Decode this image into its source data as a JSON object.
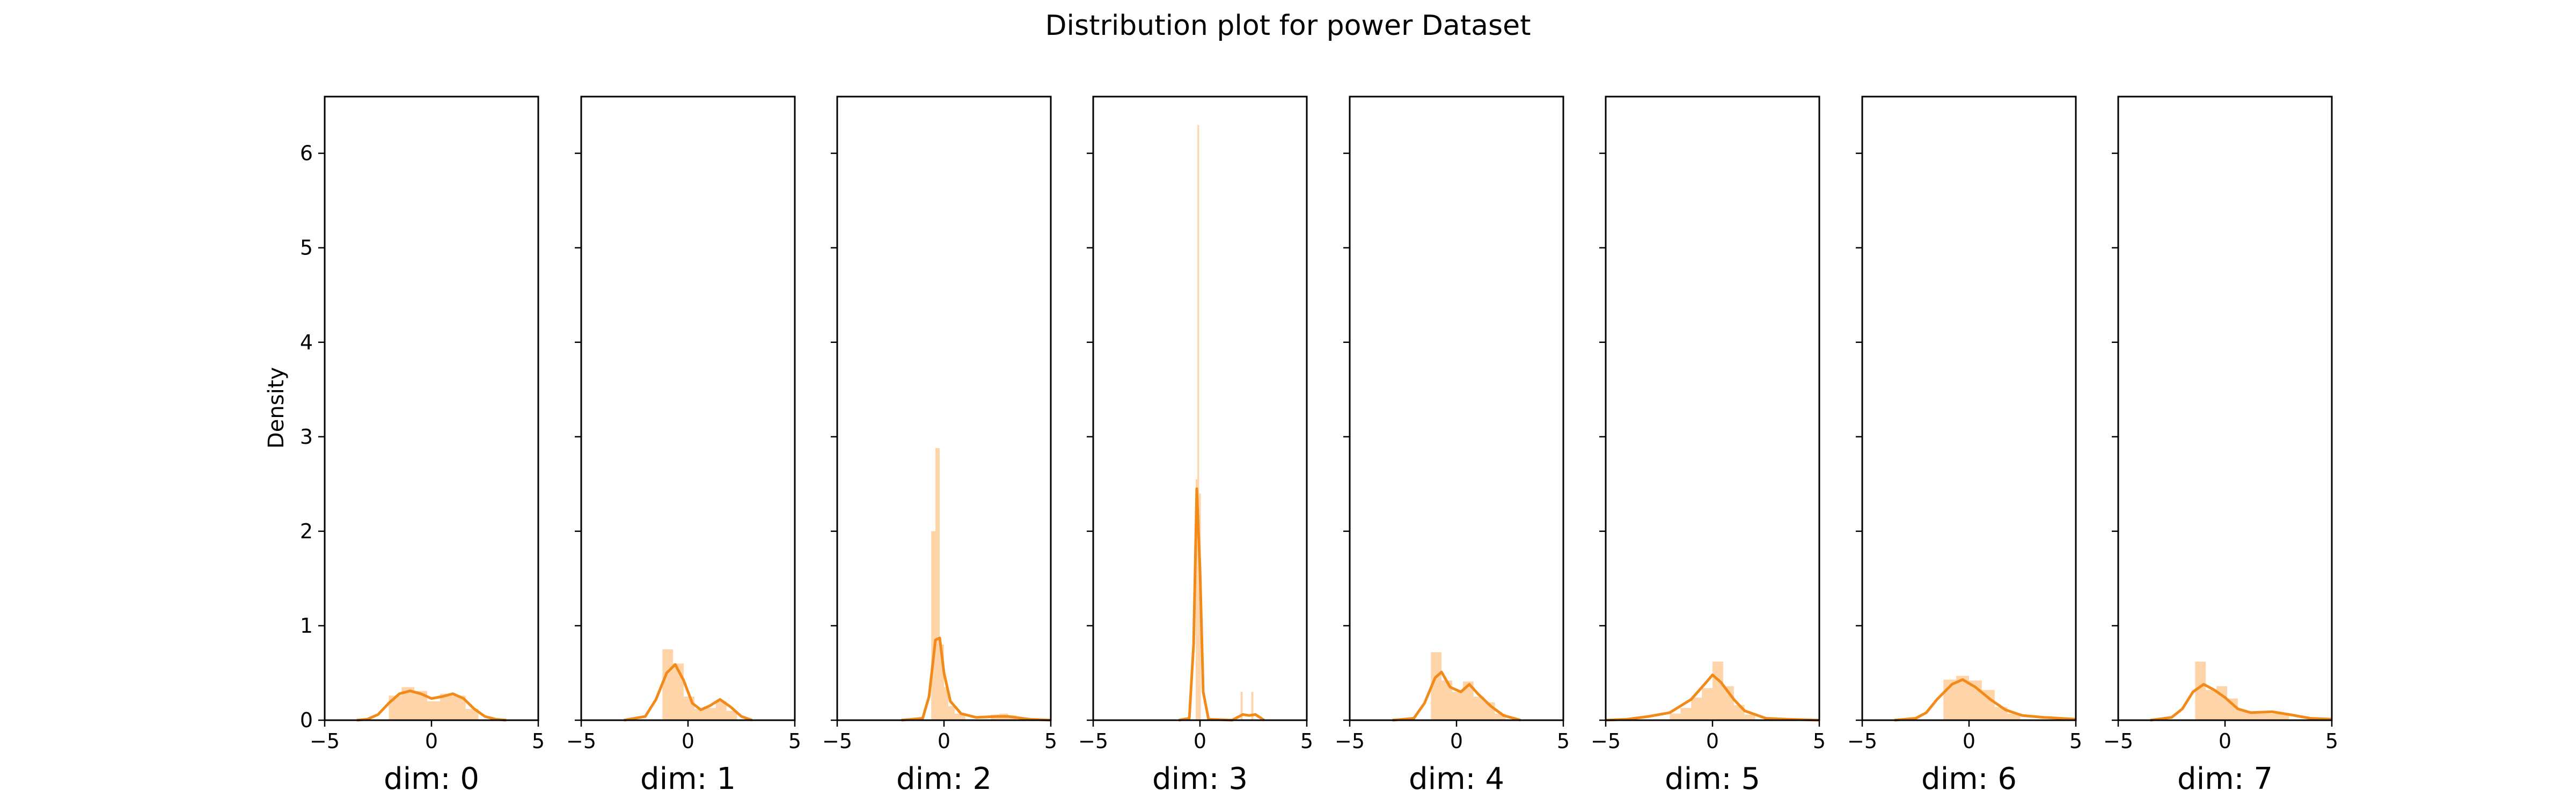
{
  "chart_data": {
    "type": "histogram-kde",
    "title": "Distribution plot for power Dataset",
    "ylabel": "Density",
    "xlim": [
      -5,
      5
    ],
    "ylim": [
      0,
      6.6
    ],
    "x_ticks": [
      -5,
      0,
      5
    ],
    "y_ticks": [
      0,
      1,
      2,
      3,
      4,
      5,
      6
    ],
    "bar_color": "#ffcc99",
    "line_color": "#f28a1a",
    "grid": false,
    "panels": [
      {
        "xlabel": "dim: 0",
        "histogram": [
          {
            "x0": -2.0,
            "x1": -1.4,
            "density": 0.26
          },
          {
            "x0": -1.4,
            "x1": -0.8,
            "density": 0.35
          },
          {
            "x0": -0.8,
            "x1": -0.2,
            "density": 0.31
          },
          {
            "x0": -0.2,
            "x1": 0.4,
            "density": 0.2
          },
          {
            "x0": 0.4,
            "x1": 1.0,
            "density": 0.28
          },
          {
            "x0": 1.0,
            "x1": 1.6,
            "density": 0.26
          },
          {
            "x0": 1.6,
            "x1": 2.2,
            "density": 0.12
          }
        ],
        "kde": [
          [
            -3.5,
            0.0
          ],
          [
            -3.0,
            0.01
          ],
          [
            -2.5,
            0.06
          ],
          [
            -2.0,
            0.18
          ],
          [
            -1.5,
            0.28
          ],
          [
            -1.0,
            0.31
          ],
          [
            -0.5,
            0.28
          ],
          [
            0.0,
            0.23
          ],
          [
            0.5,
            0.25
          ],
          [
            1.0,
            0.28
          ],
          [
            1.5,
            0.23
          ],
          [
            2.0,
            0.12
          ],
          [
            2.5,
            0.04
          ],
          [
            3.0,
            0.01
          ],
          [
            3.5,
            0.0
          ]
        ]
      },
      {
        "xlabel": "dim: 1",
        "histogram": [
          {
            "x0": -1.2,
            "x1": -0.7,
            "density": 0.75
          },
          {
            "x0": -0.7,
            "x1": -0.2,
            "density": 0.6
          },
          {
            "x0": -0.2,
            "x1": 0.3,
            "density": 0.25
          },
          {
            "x0": 0.3,
            "x1": 0.8,
            "density": 0.12
          },
          {
            "x0": 0.8,
            "x1": 1.3,
            "density": 0.13
          },
          {
            "x0": 1.3,
            "x1": 1.8,
            "density": 0.2
          },
          {
            "x0": 1.8,
            "x1": 2.3,
            "density": 0.1
          }
        ],
        "kde": [
          [
            -3.0,
            0.0
          ],
          [
            -2.0,
            0.04
          ],
          [
            -1.5,
            0.22
          ],
          [
            -1.0,
            0.5
          ],
          [
            -0.6,
            0.59
          ],
          [
            -0.2,
            0.42
          ],
          [
            0.2,
            0.18
          ],
          [
            0.6,
            0.11
          ],
          [
            1.0,
            0.15
          ],
          [
            1.5,
            0.22
          ],
          [
            2.0,
            0.14
          ],
          [
            2.5,
            0.04
          ],
          [
            3.0,
            0.0
          ]
        ]
      },
      {
        "xlabel": "dim: 2",
        "histogram": [
          {
            "x0": -0.6,
            "x1": -0.4,
            "density": 2.0
          },
          {
            "x0": -0.4,
            "x1": -0.2,
            "density": 2.88
          },
          {
            "x0": -0.2,
            "x1": 0.0,
            "density": 0.8
          },
          {
            "x0": 0.0,
            "x1": 0.2,
            "density": 0.35
          },
          {
            "x0": 0.2,
            "x1": 0.5,
            "density": 0.15
          },
          {
            "x0": 0.5,
            "x1": 1.0,
            "density": 0.07
          },
          {
            "x0": 2.2,
            "x1": 2.6,
            "density": 0.06
          },
          {
            "x0": 2.6,
            "x1": 3.0,
            "density": 0.07
          },
          {
            "x0": 3.0,
            "x1": 3.4,
            "density": 0.05
          }
        ],
        "kde": [
          [
            -2.0,
            0.0
          ],
          [
            -1.0,
            0.02
          ],
          [
            -0.7,
            0.25
          ],
          [
            -0.4,
            0.85
          ],
          [
            -0.2,
            0.87
          ],
          [
            0.0,
            0.5
          ],
          [
            0.3,
            0.2
          ],
          [
            0.8,
            0.07
          ],
          [
            1.5,
            0.03
          ],
          [
            2.5,
            0.04
          ],
          [
            3.0,
            0.04
          ],
          [
            4.0,
            0.01
          ],
          [
            5.0,
            0.0
          ]
        ]
      },
      {
        "xlabel": "dim: 3",
        "histogram": [
          {
            "x0": -0.12,
            "x1": -0.04,
            "density": 6.3
          },
          {
            "x0": -0.2,
            "x1": -0.12,
            "density": 2.55
          },
          {
            "x0": -0.04,
            "x1": 0.04,
            "density": 2.4
          },
          {
            "x0": 1.9,
            "x1": 2.0,
            "density": 0.3
          },
          {
            "x0": 2.4,
            "x1": 2.5,
            "density": 0.3
          }
        ],
        "kde": [
          [
            -1.0,
            0.0
          ],
          [
            -0.5,
            0.02
          ],
          [
            -0.3,
            0.8
          ],
          [
            -0.15,
            2.45
          ],
          [
            0.0,
            1.6
          ],
          [
            0.15,
            0.3
          ],
          [
            0.4,
            0.01
          ],
          [
            1.5,
            0.0
          ],
          [
            2.0,
            0.06
          ],
          [
            2.3,
            0.05
          ],
          [
            2.6,
            0.06
          ],
          [
            3.0,
            0.0
          ]
        ]
      },
      {
        "xlabel": "dim: 4",
        "histogram": [
          {
            "x0": -1.2,
            "x1": -0.7,
            "density": 0.72
          },
          {
            "x0": -0.7,
            "x1": -0.2,
            "density": 0.42
          },
          {
            "x0": -0.2,
            "x1": 0.3,
            "density": 0.3
          },
          {
            "x0": 0.3,
            "x1": 0.8,
            "density": 0.41
          },
          {
            "x0": 0.8,
            "x1": 1.3,
            "density": 0.25
          },
          {
            "x0": 1.3,
            "x1": 1.8,
            "density": 0.19
          },
          {
            "x0": 1.8,
            "x1": 2.3,
            "density": 0.07
          }
        ],
        "kde": [
          [
            -3.0,
            0.0
          ],
          [
            -2.0,
            0.02
          ],
          [
            -1.5,
            0.18
          ],
          [
            -1.0,
            0.45
          ],
          [
            -0.7,
            0.51
          ],
          [
            -0.3,
            0.35
          ],
          [
            0.2,
            0.3
          ],
          [
            0.6,
            0.38
          ],
          [
            1.0,
            0.28
          ],
          [
            1.6,
            0.15
          ],
          [
            2.2,
            0.05
          ],
          [
            3.0,
            0.0
          ]
        ]
      },
      {
        "xlabel": "dim: 5",
        "histogram": [
          {
            "x0": -2.0,
            "x1": -1.5,
            "density": 0.07
          },
          {
            "x0": -1.5,
            "x1": -1.0,
            "density": 0.13
          },
          {
            "x0": -1.0,
            "x1": -0.5,
            "density": 0.24
          },
          {
            "x0": -0.5,
            "x1": 0.0,
            "density": 0.34
          },
          {
            "x0": 0.0,
            "x1": 0.5,
            "density": 0.62
          },
          {
            "x0": 0.5,
            "x1": 1.0,
            "density": 0.36
          },
          {
            "x0": 1.0,
            "x1": 1.5,
            "density": 0.16
          },
          {
            "x0": 1.5,
            "x1": 2.0,
            "density": 0.06
          }
        ],
        "kde": [
          [
            -5.0,
            0.0
          ],
          [
            -4.0,
            0.01
          ],
          [
            -3.0,
            0.04
          ],
          [
            -2.0,
            0.08
          ],
          [
            -1.0,
            0.22
          ],
          [
            -0.3,
            0.4
          ],
          [
            0.0,
            0.48
          ],
          [
            0.4,
            0.4
          ],
          [
            1.0,
            0.22
          ],
          [
            1.5,
            0.1
          ],
          [
            2.5,
            0.02
          ],
          [
            3.5,
            0.01
          ],
          [
            5.0,
            0.0
          ]
        ]
      },
      {
        "xlabel": "dim: 6",
        "histogram": [
          {
            "x0": -1.2,
            "x1": -0.6,
            "density": 0.43
          },
          {
            "x0": -0.6,
            "x1": 0.0,
            "density": 0.47
          },
          {
            "x0": 0.0,
            "x1": 0.6,
            "density": 0.42
          },
          {
            "x0": 0.6,
            "x1": 1.2,
            "density": 0.32
          },
          {
            "x0": 1.2,
            "x1": 1.8,
            "density": 0.14
          },
          {
            "x0": 1.8,
            "x1": 2.4,
            "density": 0.07
          }
        ],
        "kde": [
          [
            -3.5,
            0.0
          ],
          [
            -2.5,
            0.02
          ],
          [
            -2.0,
            0.08
          ],
          [
            -1.5,
            0.22
          ],
          [
            -0.8,
            0.38
          ],
          [
            -0.3,
            0.43
          ],
          [
            0.3,
            0.35
          ],
          [
            1.0,
            0.22
          ],
          [
            1.7,
            0.11
          ],
          [
            2.5,
            0.05
          ],
          [
            3.5,
            0.03
          ],
          [
            5.0,
            0.01
          ]
        ]
      },
      {
        "xlabel": "dim: 7",
        "histogram": [
          {
            "x0": -1.4,
            "x1": -0.9,
            "density": 0.62
          },
          {
            "x0": -0.9,
            "x1": -0.4,
            "density": 0.32
          },
          {
            "x0": -0.4,
            "x1": 0.1,
            "density": 0.36
          },
          {
            "x0": 0.1,
            "x1": 0.6,
            "density": 0.23
          },
          {
            "x0": 0.6,
            "x1": 1.2,
            "density": 0.1
          },
          {
            "x0": 1.2,
            "x1": 2.0,
            "density": 0.07
          },
          {
            "x0": 2.0,
            "x1": 3.0,
            "density": 0.07
          }
        ],
        "kde": [
          [
            -3.5,
            0.0
          ],
          [
            -2.5,
            0.03
          ],
          [
            -2.0,
            0.12
          ],
          [
            -1.5,
            0.3
          ],
          [
            -1.0,
            0.38
          ],
          [
            -0.5,
            0.32
          ],
          [
            0.0,
            0.24
          ],
          [
            0.6,
            0.12
          ],
          [
            1.2,
            0.08
          ],
          [
            2.2,
            0.09
          ],
          [
            3.0,
            0.06
          ],
          [
            4.0,
            0.02
          ],
          [
            5.0,
            0.01
          ]
        ]
      }
    ]
  }
}
